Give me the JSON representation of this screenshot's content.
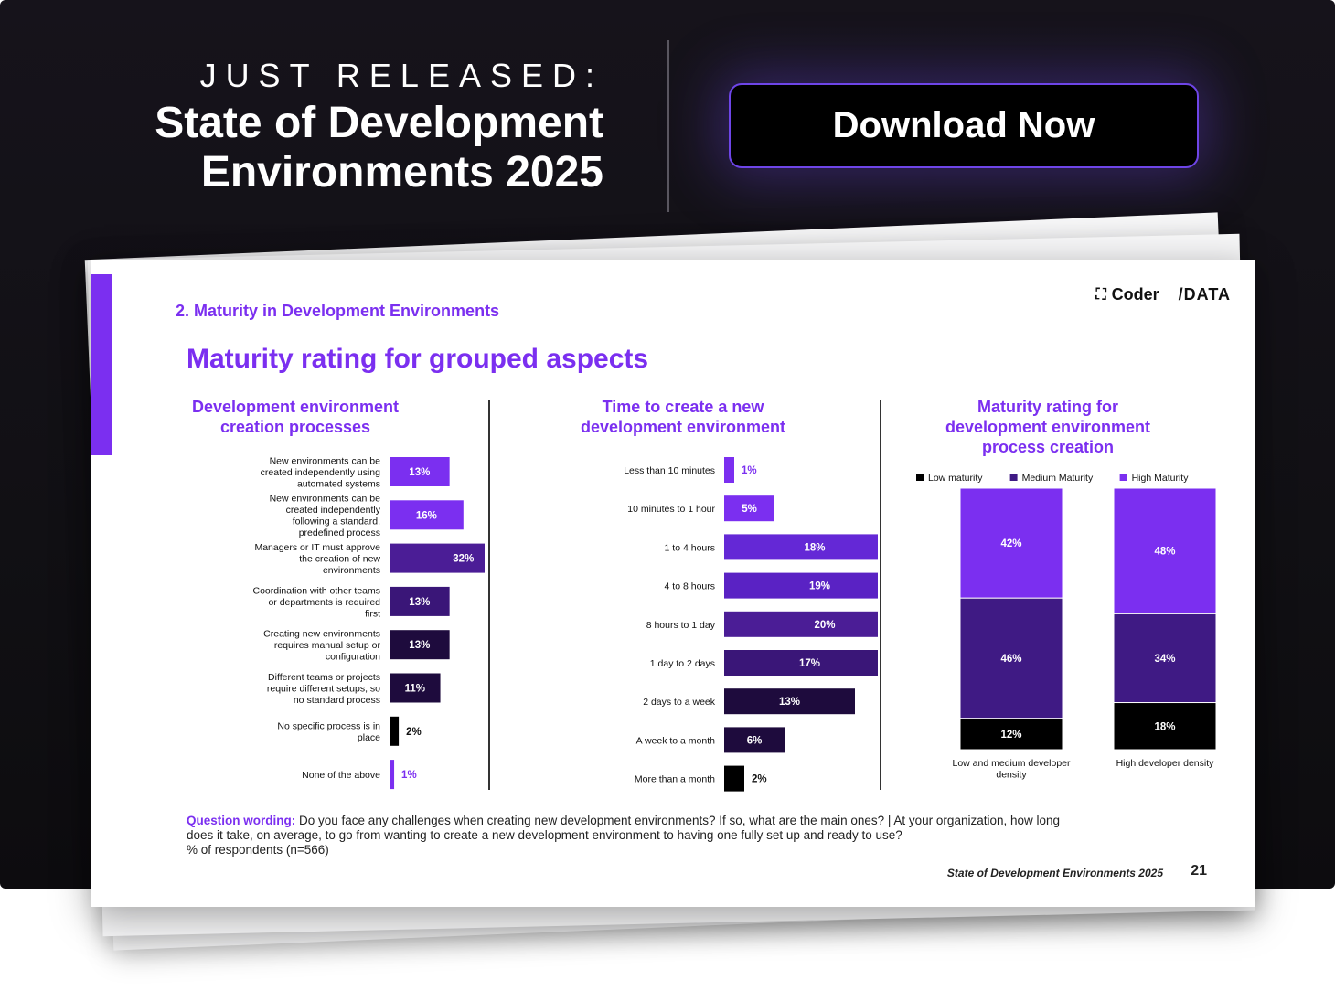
{
  "banner": {
    "eyebrow": "JUST RELEASED:",
    "headline_line1": "State of Development",
    "headline_line2": "Environments 2025",
    "cta_label": "Download Now"
  },
  "slide": {
    "section": "2. Maturity in Development Environments",
    "title": "Maturity rating for grouped aspects",
    "logo_coder": "Coder",
    "logo_data": "/DATA",
    "question_label": "Question wording:",
    "question_text": "Do you face any challenges when creating new development environments? If so, what are the main ones? | At your organization, how long does it take, on average, to go from wanting to create a new development environment to having one fully set up and ready to use?",
    "respondents": "% of respondents (n=566)",
    "footer": "State of Development Environments 2025",
    "page_number": "21"
  },
  "colors": {
    "brand": "#7b2ff0",
    "medium": "#4b1d96",
    "dark": "#1e0b3d",
    "black": "#000000"
  },
  "chart_data": [
    {
      "type": "bar",
      "orientation": "horizontal",
      "title": "Development environment creation processes",
      "categories": [
        "New environments can be created independently using automated systems",
        "New environments can be created independently following a standard, predefined process",
        "Managers or IT must approve the creation of new environments",
        "Coordination with other teams or departments is required first",
        "Creating new environments requires manual setup or configuration",
        "Different teams or projects require different setups, so no standard process",
        "No specific process is in place",
        "None of the above"
      ],
      "values": [
        13,
        16,
        32,
        13,
        13,
        11,
        2,
        1
      ],
      "data_labels": [
        "13%",
        "16%",
        "32%",
        "13%",
        "13%",
        "11%",
        "2%",
        "1%"
      ],
      "colors": [
        "#7b2ff0",
        "#7b2ff0",
        "#4b1d96",
        "#3a1678",
        "#1e0b3d",
        "#1e0b3d",
        "#000000",
        "#7b2ff0"
      ]
    },
    {
      "type": "bar",
      "orientation": "horizontal",
      "title": "Time to create a new development environment",
      "categories": [
        "Less than 10 minutes",
        "10 minutes to 1 hour",
        "1 to 4 hours",
        "4 to 8 hours",
        "8 hours to 1 day",
        "1 day to 2 days",
        "2 days to a week",
        "A week to a month",
        "More than a month"
      ],
      "values": [
        1,
        5,
        18,
        19,
        20,
        17,
        13,
        6,
        2
      ],
      "data_labels": [
        "1%",
        "5%",
        "18%",
        "19%",
        "20%",
        "17%",
        "13%",
        "6%",
        "2%"
      ],
      "colors": [
        "#7b2ff0",
        "#7b2ff0",
        "#6428d6",
        "#5a22c4",
        "#4b1d96",
        "#3a1678",
        "#1e0b3d",
        "#1e0b3d",
        "#000000"
      ]
    },
    {
      "type": "bar",
      "stacked": true,
      "title": "Maturity rating for development environment process creation",
      "categories": [
        "Low and medium developer density",
        "High developer density"
      ],
      "series": [
        {
          "name": "Low maturity",
          "values": [
            12,
            18
          ],
          "color": "#000000"
        },
        {
          "name": "Medium Maturity",
          "values": [
            46,
            34
          ],
          "color": "#3f1a84"
        },
        {
          "name": "High Maturity",
          "values": [
            42,
            48
          ],
          "color": "#7b2ff0"
        }
      ],
      "legend": "top"
    }
  ]
}
